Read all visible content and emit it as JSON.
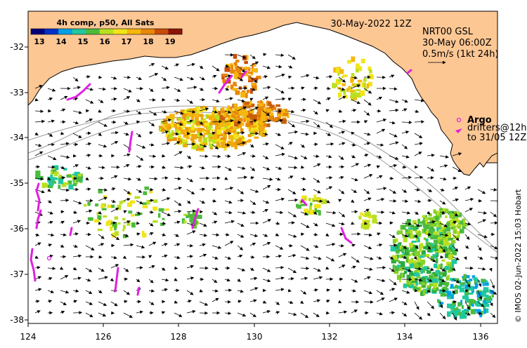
{
  "title": "30-May-2022 12Z",
  "colorbar": {
    "title": "4h comp, p50, All Sats",
    "ticks": [
      "13",
      "14",
      "15",
      "16",
      "17",
      "18",
      "19"
    ],
    "range": [
      12.5,
      19.5
    ],
    "colors": [
      "#00007a",
      "#0032c8",
      "#00a0e6",
      "#20c8a0",
      "#4cbb3c",
      "#b8e020",
      "#f2e418",
      "#f5b70c",
      "#e8860a",
      "#c84c08",
      "#8c1408"
    ]
  },
  "currents": {
    "source": "NRT00 GSL",
    "time": "30-May 06:00Z",
    "scale_label": "0.5m/s (1kt 24h)"
  },
  "argo": {
    "label": "Argo",
    "drifters_label": "drifters@12h",
    "drifters_period": "to 31/05 12Z",
    "marker_color": "#e020e0"
  },
  "credit": "© IMOS 02-Jun-2022 15:03 Hobart",
  "axes": {
    "x_ticks": [
      "124",
      "126",
      "128",
      "130",
      "132",
      "134",
      "136"
    ],
    "y_ticks": [
      "-32",
      "-33",
      "-34",
      "-35",
      "-36",
      "-37",
      "-38"
    ]
  },
  "colors": {
    "land": "#fdc794",
    "ocean": "#ffffff",
    "coastline": "#000000",
    "isobath": "#999999"
  }
}
